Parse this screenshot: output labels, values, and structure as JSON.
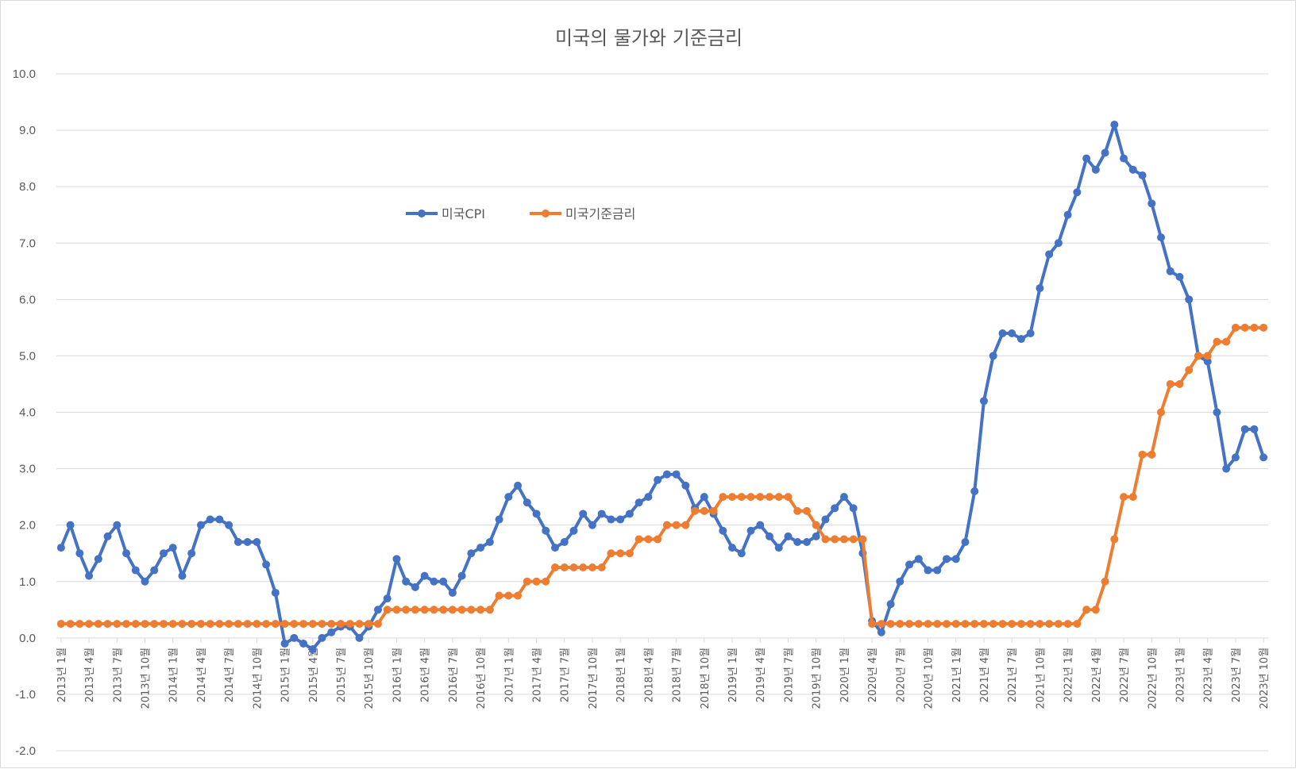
{
  "chart_data": {
    "type": "line",
    "title": "미국의 물가와 기준금리",
    "xlabel": "",
    "ylabel": "",
    "ylim": [
      -2.0,
      10.0
    ],
    "y_ticks": [
      "10.0",
      "9.0",
      "8.0",
      "7.0",
      "6.0",
      "5.0",
      "4.0",
      "3.0",
      "2.0",
      "1.0",
      "0.0",
      "-1.0",
      "-2.0"
    ],
    "y_tick_values": [
      10,
      9,
      8,
      7,
      6,
      5,
      4,
      3,
      2,
      1,
      0,
      -1,
      -2
    ],
    "x_tick_labels": [
      "2013년 1월",
      "2013년 4월",
      "2013년 7월",
      "2013년 10월",
      "2014년 1월",
      "2014년 4월",
      "2014년 7월",
      "2014년 10월",
      "2015년 1월",
      "2015년 4월",
      "2015년 7월",
      "2015년 10월",
      "2016년 1월",
      "2016년 4월",
      "2016년 7월",
      "2016년 10월",
      "2017년 1월",
      "2017년 4월",
      "2017년 7월",
      "2017년 10월",
      "2018년 1월",
      "2018년 4월",
      "2018년 7월",
      "2018년 10월",
      "2019년 1월",
      "2019년 4월",
      "2019년 7월",
      "2019년 10월",
      "2020년 1월",
      "2020년 4월",
      "2020년 7월",
      "2020년 10월",
      "2021년 1월",
      "2021년 4월",
      "2021년 7월",
      "2021년 10월",
      "2022년 1월",
      "2022년 4월",
      "2022년 7월",
      "2022년 10월",
      "2023년 1월",
      "2023년 4월",
      "2023년 7월",
      "2023년 10월"
    ],
    "x_start": "2013년 1월",
    "x_end": "2023년 10월",
    "grid": true,
    "legend_position": "top-center",
    "series": [
      {
        "name": "미국CPI",
        "color": "#4472c4",
        "values": [
          1.6,
          2.0,
          1.5,
          1.1,
          1.4,
          1.8,
          2.0,
          1.5,
          1.2,
          1.0,
          1.2,
          1.5,
          1.6,
          1.1,
          1.5,
          2.0,
          2.1,
          2.1,
          2.0,
          1.7,
          1.7,
          1.7,
          1.3,
          0.8,
          -0.1,
          0.0,
          -0.1,
          -0.2,
          0.0,
          0.1,
          0.2,
          0.2,
          0.0,
          0.2,
          0.5,
          0.7,
          1.4,
          1.0,
          0.9,
          1.1,
          1.0,
          1.0,
          0.8,
          1.1,
          1.5,
          1.6,
          1.7,
          2.1,
          2.5,
          2.7,
          2.4,
          2.2,
          1.9,
          1.6,
          1.7,
          1.9,
          2.2,
          2.0,
          2.2,
          2.1,
          2.1,
          2.2,
          2.4,
          2.5,
          2.8,
          2.9,
          2.9,
          2.7,
          2.3,
          2.5,
          2.2,
          1.9,
          1.6,
          1.5,
          1.9,
          2.0,
          1.8,
          1.6,
          1.8,
          1.7,
          1.7,
          1.8,
          2.1,
          2.3,
          2.5,
          2.3,
          1.5,
          0.3,
          0.1,
          0.6,
          1.0,
          1.3,
          1.4,
          1.2,
          1.2,
          1.4,
          1.4,
          1.7,
          2.6,
          4.2,
          5.0,
          5.4,
          5.4,
          5.3,
          5.4,
          6.2,
          6.8,
          7.0,
          7.5,
          7.9,
          8.5,
          8.3,
          8.6,
          9.1,
          8.5,
          8.3,
          8.2,
          7.7,
          7.1,
          6.5,
          6.4,
          6.0,
          5.0,
          4.9,
          4.0,
          3.0,
          3.2,
          3.7,
          3.7,
          3.2
        ]
      },
      {
        "name": "미국기준금리",
        "color": "#ed7d31",
        "values": [
          0.25,
          0.25,
          0.25,
          0.25,
          0.25,
          0.25,
          0.25,
          0.25,
          0.25,
          0.25,
          0.25,
          0.25,
          0.25,
          0.25,
          0.25,
          0.25,
          0.25,
          0.25,
          0.25,
          0.25,
          0.25,
          0.25,
          0.25,
          0.25,
          0.25,
          0.25,
          0.25,
          0.25,
          0.25,
          0.25,
          0.25,
          0.25,
          0.25,
          0.25,
          0.25,
          0.5,
          0.5,
          0.5,
          0.5,
          0.5,
          0.5,
          0.5,
          0.5,
          0.5,
          0.5,
          0.5,
          0.5,
          0.75,
          0.75,
          0.75,
          1.0,
          1.0,
          1.0,
          1.25,
          1.25,
          1.25,
          1.25,
          1.25,
          1.25,
          1.5,
          1.5,
          1.5,
          1.75,
          1.75,
          1.75,
          2.0,
          2.0,
          2.0,
          2.25,
          2.25,
          2.25,
          2.5,
          2.5,
          2.5,
          2.5,
          2.5,
          2.5,
          2.5,
          2.5,
          2.25,
          2.25,
          2.0,
          1.75,
          1.75,
          1.75,
          1.75,
          1.75,
          0.25,
          0.25,
          0.25,
          0.25,
          0.25,
          0.25,
          0.25,
          0.25,
          0.25,
          0.25,
          0.25,
          0.25,
          0.25,
          0.25,
          0.25,
          0.25,
          0.25,
          0.25,
          0.25,
          0.25,
          0.25,
          0.25,
          0.25,
          0.5,
          0.5,
          1.0,
          1.75,
          2.5,
          2.5,
          3.25,
          3.25,
          4.0,
          4.5,
          4.5,
          4.75,
          5.0,
          5.0,
          5.25,
          5.25,
          5.5,
          5.5,
          5.5,
          5.5
        ]
      }
    ]
  }
}
